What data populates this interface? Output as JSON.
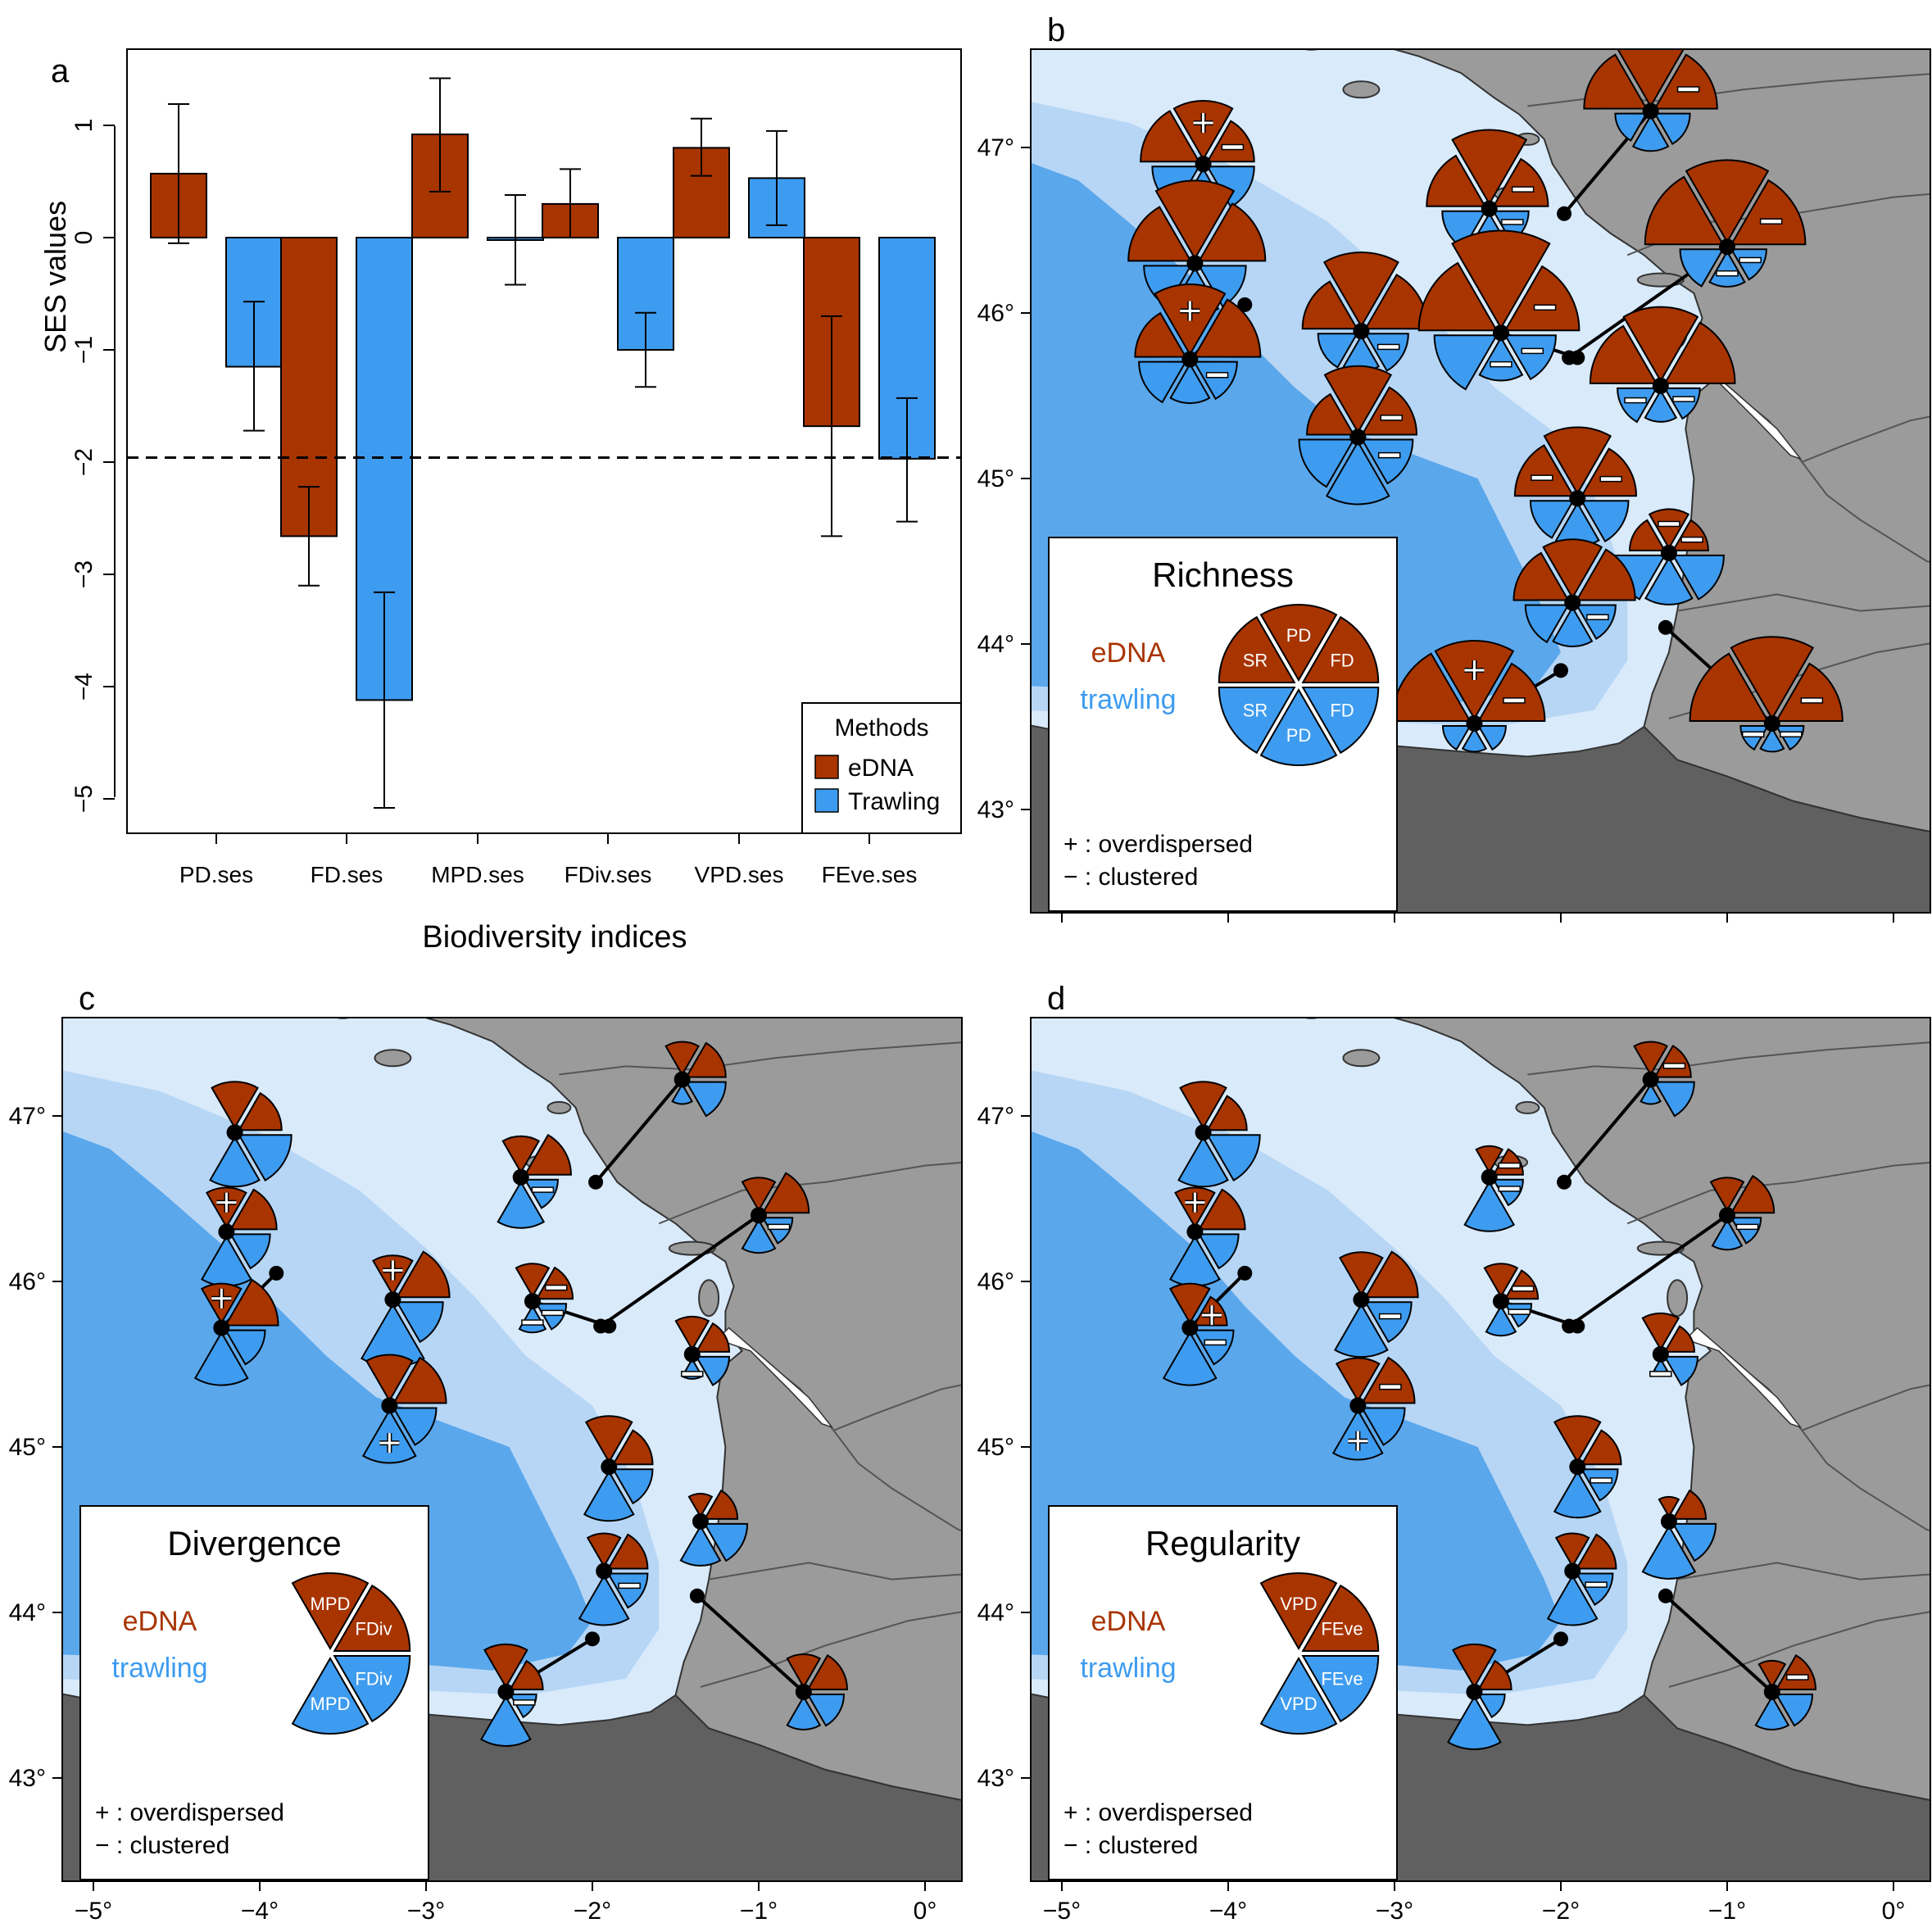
{
  "colors": {
    "edna": "#a83400",
    "trawling": "#3e9cf0",
    "land_light": "#9b9b9b",
    "land_dark": "#606060",
    "sea_shallow": "#d9eafb",
    "sea_mid": "#b7d6f5",
    "sea_deep": "#5aa7ec"
  },
  "chart_data": [
    {
      "panel": "a",
      "type": "bar",
      "xlabel": "Biodiversity indices",
      "ylabel": "SES values",
      "ylim": [
        -5.3,
        1.65
      ],
      "yticks": [
        1,
        0,
        -1,
        -2,
        -3,
        -4,
        -5
      ],
      "ytick_labels": [
        "1",
        "0",
        "−1",
        "−2",
        "−3",
        "−4",
        "−5"
      ],
      "categories": [
        "PD.ses",
        "FD.ses",
        "MPD.ses",
        "FDiv.ses",
        "VPD.ses",
        "FEve.ses"
      ],
      "reference_line": -1.96,
      "legend": {
        "title": "Methods",
        "position": "bottom-right",
        "entries": [
          "eDNA",
          "Trawling"
        ]
      },
      "series": [
        {
          "name": "eDNA",
          "values": [
            0.57,
            -2.66,
            0.92,
            0.3,
            0.8,
            -1.68
          ],
          "err_low": [
            -0.05,
            -3.1,
            0.41,
            0.0,
            0.55,
            -2.66
          ],
          "err_high": [
            1.19,
            -2.22,
            1.42,
            0.61,
            1.06,
            -0.7
          ]
        },
        {
          "name": "Trawling",
          "values": [
            -1.15,
            -4.12,
            -0.02,
            -1.0,
            0.53,
            -1.97
          ],
          "err_low": [
            -1.72,
            -5.08,
            -0.42,
            -1.33,
            0.11,
            -2.53
          ],
          "err_high": [
            -0.57,
            -3.16,
            0.38,
            -0.67,
            0.95,
            -1.43
          ]
        }
      ]
    },
    {
      "panel": "b",
      "type": "map",
      "title": "Richness",
      "x_ticks": [
        -5,
        -4,
        -3,
        -2,
        -1,
        0
      ],
      "y_ticks": [
        47,
        46,
        45,
        44,
        43
      ],
      "legend_labels": {
        "top": [
          "SR",
          "PD",
          "FD"
        ],
        "bottom": [
          "SR",
          "PD",
          "FD"
        ]
      },
      "legend_methods": [
        "eDNA",
        "trawling"
      ],
      "legend_notes": [
        "+ : overdispersed",
        "− : clustered"
      ]
    },
    {
      "panel": "c",
      "type": "map",
      "title": "Divergence",
      "x_ticks": [
        -5,
        -4,
        -3,
        -2,
        -1,
        0
      ],
      "y_ticks": [
        47,
        46,
        45,
        44,
        43
      ],
      "legend_labels": {
        "top": [
          "MPD",
          "FDiv"
        ],
        "bottom": [
          "MPD",
          "FDiv"
        ]
      },
      "legend_methods": [
        "eDNA",
        "trawling"
      ],
      "legend_notes": [
        "+ : overdispersed",
        "− : clustered"
      ]
    },
    {
      "panel": "d",
      "type": "map",
      "title": "Regularity",
      "x_ticks": [
        -5,
        -4,
        -3,
        -2,
        -1,
        0
      ],
      "y_ticks": [
        47,
        46,
        45,
        44,
        43
      ],
      "legend_labels": {
        "top": [
          "VPD",
          "FEve"
        ],
        "bottom": [
          "VPD",
          "FEve"
        ]
      },
      "legend_methods": [
        "eDNA",
        "trawling"
      ],
      "legend_notes": [
        "+ : overdispersed",
        "− : clustered"
      ]
    }
  ],
  "panel_letters": [
    "a",
    "b",
    "c",
    "d"
  ],
  "x_tick_labels": [
    "−5°",
    "−4°",
    "−3°",
    "−2°",
    "−1°",
    "0°"
  ],
  "y_tick_labels": [
    "47°",
    "46°",
    "45°",
    "44°",
    "43°"
  ],
  "sites": [
    {
      "lon": -4.15,
      "lat": 46.9,
      "rich": {
        "e": [
          0.75,
          0.75,
          0.6
        ],
        "t": [
          0.6,
          0.55,
          0.6
        ],
        "signs": [
          [
            "+",
            "e1"
          ],
          [
            "−",
            "e2"
          ]
        ]
      },
      "div": {
        "e": [
          0.7,
          0.65
        ],
        "t": [
          0.75,
          0.8
        ],
        "signs": []
      },
      "reg": {
        "e": [
          0.7,
          0.6
        ],
        "t": [
          0.75,
          0.8
        ],
        "signs": []
      }
    },
    {
      "lon": -4.2,
      "lat": 46.3,
      "rich": {
        "e": [
          0.8,
          1.0,
          0.85
        ],
        "t": [
          0.6,
          0.6,
          0.6
        ],
        "signs": []
      },
      "div": {
        "e": [
          0.6,
          0.7
        ],
        "t": [
          0.75,
          0.6
        ],
        "signs": [
          [
            "+",
            "e0"
          ]
        ]
      },
      "reg": {
        "e": [
          0.6,
          0.7
        ],
        "t": [
          0.75,
          0.6
        ],
        "signs": [
          [
            "+",
            "e0"
          ]
        ]
      }
    },
    {
      "lon": -4.23,
      "lat": 45.72,
      "from_lon": -3.9,
      "from_lat": 46.05,
      "rich": {
        "e": [
          0.65,
          0.9,
          0.85
        ],
        "t": [
          0.6,
          0.5,
          0.55
        ],
        "signs": [
          [
            "+",
            "e1"
          ],
          [
            "−",
            "t2"
          ]
        ]
      },
      "div": {
        "e": [
          0.6,
          0.8
        ],
        "t": [
          0.8,
          0.6
        ],
        "signs": [
          [
            "+",
            "e0"
          ]
        ]
      },
      "reg": {
        "e": [
          0.6,
          0.5
        ],
        "t": [
          0.8,
          0.6
        ],
        "signs": [
          [
            "+",
            "e1"
          ],
          [
            "−",
            "t1"
          ]
        ]
      }
    },
    {
      "lon": -3.2,
      "lat": 45.89,
      "rich": {
        "e": [
          0.7,
          0.95,
          0.8
        ],
        "t": [
          0.5,
          0.45,
          0.55
        ],
        "signs": [
          [
            "−",
            "t2"
          ]
        ]
      },
      "div": {
        "e": [
          0.6,
          0.8
        ],
        "t": [
          0.95,
          0.7
        ],
        "signs": [
          [
            "+",
            "e0"
          ]
        ]
      },
      "reg": {
        "e": [
          0.65,
          0.8
        ],
        "t": [
          0.8,
          0.7
        ],
        "signs": [
          [
            "−",
            "t1"
          ]
        ]
      }
    },
    {
      "lon": -3.22,
      "lat": 45.25,
      "rich": {
        "e": [
          0.6,
          0.85,
          0.7
        ],
        "t": [
          0.7,
          0.8,
          0.65
        ],
        "signs": [
          [
            "−",
            "e2"
          ],
          [
            "−",
            "t2"
          ]
        ]
      },
      "div": {
        "e": [
          0.7,
          0.8
        ],
        "t": [
          0.8,
          0.65
        ],
        "signs": [
          [
            "+",
            "t0"
          ]
        ]
      },
      "reg": {
        "e": [
          0.65,
          0.8
        ],
        "t": [
          0.75,
          0.65
        ],
        "signs": [
          [
            "−",
            "e1"
          ],
          [
            "+",
            "t0"
          ]
        ]
      }
    },
    {
      "lon": -2.43,
      "lat": 46.63,
      "rich": {
        "e": [
          0.75,
          0.95,
          0.7
        ],
        "t": [
          0.55,
          0.5,
          0.45
        ],
        "signs": [
          [
            "−",
            "e2"
          ],
          [
            "−",
            "t2"
          ]
        ]
      },
      "div": {
        "e": [
          0.55,
          0.7
        ],
        "t": [
          0.7,
          0.5
        ],
        "signs": [
          [
            "−",
            "t1"
          ]
        ]
      },
      "reg": {
        "e": [
          0.4,
          0.45
        ],
        "t": [
          0.75,
          0.45
        ],
        "signs": [
          [
            "−",
            "e1"
          ],
          [
            "−",
            "t1"
          ]
        ]
      }
    },
    {
      "lon": -2.36,
      "lat": 45.88,
      "from_lon": -1.9,
      "from_lat": 45.73,
      "rich": {
        "e": [
          1.0,
          1.25,
          0.95
        ],
        "t": [
          0.8,
          0.55,
          0.65
        ],
        "signs": [
          [
            "−",
            "e2"
          ],
          [
            "−",
            "t2"
          ],
          [
            "−",
            "t1"
          ]
        ]
      },
      "div": {
        "e": [
          0.5,
          0.55
        ],
        "t": [
          0.4,
          0.45
        ],
        "signs": [
          [
            "−",
            "e1"
          ],
          [
            "−",
            "t1"
          ],
          [
            "−",
            "t0"
          ]
        ]
      },
      "reg": {
        "e": [
          0.5,
          0.5
        ],
        "t": [
          0.45,
          0.4
        ],
        "signs": [
          [
            "−",
            "e1"
          ],
          [
            "−",
            "t1"
          ]
        ]
      }
    },
    {
      "lon": -1.46,
      "lat": 47.22,
      "from_lon": -1.98,
      "from_lat": 46.6,
      "rich": {
        "e": [
          0.8,
          1.0,
          0.8
        ],
        "t": [
          0.4,
          0.45,
          0.45
        ],
        "signs": [
          [
            "−",
            "e2"
          ]
        ]
      },
      "div": {
        "e": [
          0.5,
          0.6
        ],
        "t": [
          0.3,
          0.6
        ],
        "signs": []
      },
      "reg": {
        "e": [
          0.5,
          0.55
        ],
        "t": [
          0.3,
          0.6
        ],
        "signs": [
          [
            "−",
            "e1"
          ]
        ]
      }
    },
    {
      "lon": -1.0,
      "lat": 46.4,
      "from_lon": -1.95,
      "from_lat": 45.73,
      "rich": {
        "e": [
          1.0,
          1.05,
          0.95
        ],
        "t": [
          0.55,
          0.45,
          0.45
        ],
        "signs": [
          [
            "−",
            "e2"
          ],
          [
            "−",
            "t2"
          ],
          [
            "−",
            "t1"
          ]
        ]
      },
      "div": {
        "e": [
          0.5,
          0.7
        ],
        "t": [
          0.5,
          0.45
        ],
        "signs": [
          [
            "−",
            "t1"
          ]
        ]
      },
      "reg": {
        "e": [
          0.5,
          0.65
        ],
        "t": [
          0.45,
          0.45
        ],
        "signs": [
          [
            "−",
            "t1"
          ]
        ]
      }
    },
    {
      "lon": -1.4,
      "lat": 45.56,
      "rich": {
        "e": [
          0.85,
          0.95,
          0.9
        ],
        "t": [
          0.5,
          0.4,
          0.45
        ],
        "signs": [
          [
            "−",
            "t2"
          ],
          [
            "−",
            "t0"
          ]
        ]
      },
      "div": {
        "e": [
          0.5,
          0.5
        ],
        "t": [
          0.3,
          0.5
        ],
        "signs": [
          [
            "−",
            "t0"
          ]
        ]
      },
      "reg": {
        "e": [
          0.55,
          0.45
        ],
        "t": [
          0.2,
          0.5
        ],
        "signs": [
          [
            "−",
            "t0"
          ]
        ]
      }
    },
    {
      "lon": -1.9,
      "lat": 44.88,
      "rich": {
        "e": [
          0.75,
          0.85,
          0.7
        ],
        "t": [
          0.55,
          0.55,
          0.6
        ],
        "signs": [
          [
            "−",
            "e0"
          ],
          [
            "−",
            "e2"
          ]
        ]
      },
      "div": {
        "e": [
          0.7,
          0.6
        ],
        "t": [
          0.75,
          0.6
        ],
        "signs": []
      },
      "reg": {
        "e": [
          0.7,
          0.6
        ],
        "t": [
          0.7,
          0.55
        ],
        "signs": [
          [
            "−",
            "t1"
          ]
        ]
      }
    },
    {
      "lon": -1.35,
      "lat": 44.55,
      "rich": {
        "e": [
          0.45,
          0.5,
          0.45
        ],
        "t": [
          0.65,
          0.6,
          0.65
        ],
        "signs": [
          [
            "−",
            "e1"
          ],
          [
            "−",
            "e2"
          ]
        ]
      },
      "div": {
        "e": [
          0.35,
          0.5
        ],
        "t": [
          0.6,
          0.65
        ],
        "signs": []
      },
      "reg": {
        "e": [
          0.3,
          0.5
        ],
        "t": [
          0.8,
          0.65
        ],
        "signs": []
      }
    },
    {
      "lon": -1.93,
      "lat": 44.25,
      "rich": {
        "e": [
          0.7,
          0.75,
          0.75
        ],
        "t": [
          0.55,
          0.5,
          0.5
        ],
        "signs": [
          [
            "−",
            "t2"
          ]
        ]
      },
      "div": {
        "e": [
          0.5,
          0.6
        ],
        "t": [
          0.75,
          0.6
        ],
        "signs": [
          [
            "−",
            "t1"
          ]
        ]
      },
      "reg": {
        "e": [
          0.5,
          0.6
        ],
        "t": [
          0.75,
          0.55
        ],
        "signs": [
          [
            "−",
            "t1"
          ]
        ]
      }
    },
    {
      "lon": -2.52,
      "lat": 43.52,
      "from_lon": -2.0,
      "from_lat": 43.84,
      "rich": {
        "e": [
          1.0,
          1.0,
          0.85
        ],
        "t": [
          0.35,
          0.3,
          0.35
        ],
        "signs": [
          [
            "+",
            "e1"
          ],
          [
            "−",
            "e2"
          ]
        ]
      },
      "div": {
        "e": [
          0.65,
          0.5
        ],
        "t": [
          0.75,
          0.4
        ],
        "signs": [
          [
            "−",
            "t1"
          ]
        ]
      },
      "reg": {
        "e": [
          0.65,
          0.5
        ],
        "t": [
          0.8,
          0.4
        ],
        "signs": []
      }
    },
    {
      "lon": -0.73,
      "lat": 43.52,
      "from_lon": -1.37,
      "from_lat": 44.1,
      "rich": {
        "e": [
          1.0,
          1.05,
          0.85
        ],
        "t": [
          0.35,
          0.3,
          0.35
        ],
        "signs": [
          [
            "−",
            "e2"
          ],
          [
            "−",
            "t2"
          ],
          [
            "−",
            "t0"
          ]
        ]
      },
      "div": {
        "e": [
          0.5,
          0.6
        ],
        "t": [
          0.5,
          0.55
        ],
        "signs": []
      },
      "reg": {
        "e": [
          0.4,
          0.6
        ],
        "t": [
          0.5,
          0.55
        ],
        "signs": [
          [
            "−",
            "e1"
          ]
        ]
      }
    }
  ]
}
